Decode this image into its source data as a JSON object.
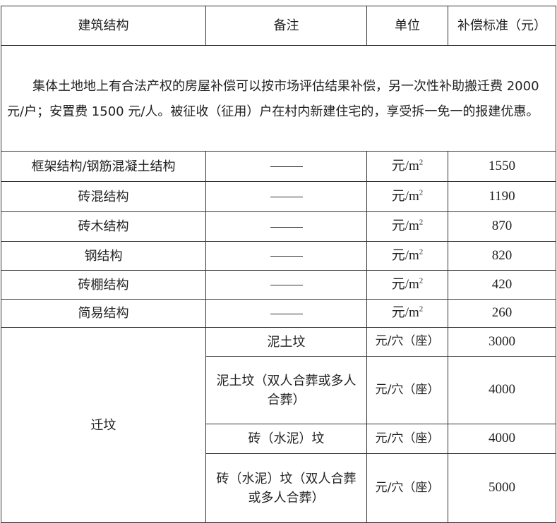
{
  "header": {
    "structure": "建筑结构",
    "remark": "备注",
    "unit": "单位",
    "standard": "补偿标准（元）"
  },
  "intro": "集体土地地上有合法产权的房屋补偿可以按市场评估结果补偿，另一次性补助搬迁费 2000 元/户；安置费 1500 元/人。被征收（征用）户在村内新建住宅的，享受拆一免一的报建优惠。",
  "rows": [
    {
      "structure": "框架结构/钢筋混凝土结构",
      "remark": "——",
      "unit": "元/m²",
      "value": "1550"
    },
    {
      "structure": "砖混结构",
      "remark": "——",
      "unit": "元/m²",
      "value": "1190"
    },
    {
      "structure": "砖木结构",
      "remark": "——",
      "unit": "元/m²",
      "value": "870"
    },
    {
      "structure": "钢结构",
      "remark": "——",
      "unit": "元/m²",
      "value": "820"
    },
    {
      "structure": "砖棚结构",
      "remark": "——",
      "unit": "元/m²",
      "value": "420"
    },
    {
      "structure": "简易结构",
      "remark": "——",
      "unit": "元/m²",
      "value": "260"
    }
  ],
  "grave": {
    "label": "迁坟",
    "items": [
      {
        "remark": "泥土坟",
        "unit": "元/穴（座）",
        "value": "3000"
      },
      {
        "remark": "泥土坟（双人合葬或多人合葬）",
        "unit": "元/穴（座）",
        "value": "4000"
      },
      {
        "remark": "砖（水泥）坟",
        "unit": "元/穴（座）",
        "value": "4000"
      },
      {
        "remark": "砖（水泥）坟（双人合葬或多人合葬）",
        "unit": "元/穴（座）",
        "value": "5000"
      }
    ]
  }
}
